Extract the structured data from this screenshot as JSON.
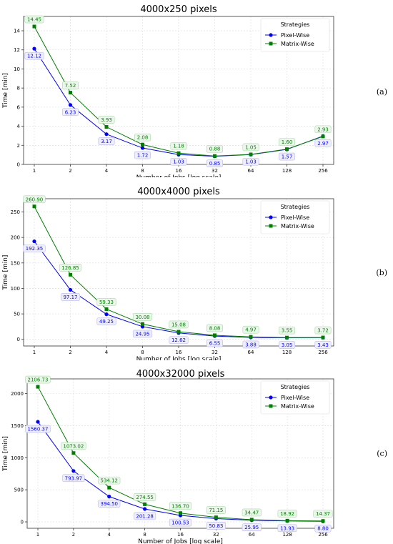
{
  "chart_data": [
    {
      "type": "line",
      "panel_label": "(a)",
      "title": "4000x250 pixels",
      "xlabel": "Number of Jobs [log scale]",
      "ylabel": "Time [min]",
      "x": [
        1,
        2,
        4,
        8,
        16,
        32,
        64,
        128,
        256
      ],
      "x_tick_labels": [
        "1",
        "2",
        "4",
        "8",
        "16",
        "32",
        "64",
        "128",
        "256"
      ],
      "x_scale": "log2",
      "ylim": [
        0,
        15.5
      ],
      "y_ticks": [
        0,
        2,
        4,
        6,
        8,
        10,
        12,
        14
      ],
      "grid": true,
      "legend": {
        "title": "Strategies",
        "position": "top-right"
      },
      "series": [
        {
          "name": "Pixel-Wise",
          "color": "#0000ff",
          "marker": "circle",
          "values": [
            12.12,
            6.23,
            3.17,
            1.72,
            1.03,
            0.85,
            1.03,
            1.57,
            2.97
          ],
          "labels": [
            "12.12",
            "6.23",
            "3.17",
            "1.72",
            "1.03",
            "0.85",
            "1.03",
            "1.57",
            "2.97"
          ]
        },
        {
          "name": "Matrix-Wise",
          "color": "#008000",
          "marker": "square",
          "values": [
            14.45,
            7.52,
            3.93,
            2.08,
            1.18,
            0.88,
            1.05,
            1.6,
            2.93
          ],
          "labels": [
            "14.45",
            "7.52",
            "3.93",
            "2.08",
            "1.18",
            "0.88",
            "1.05",
            "1.60",
            "2.93"
          ]
        }
      ]
    },
    {
      "type": "line",
      "panel_label": "(b)",
      "title": "4000x4000 pixels",
      "xlabel": "Number of Jobs [log scale]",
      "ylabel": "Time [min]",
      "x": [
        1,
        2,
        4,
        8,
        16,
        32,
        64,
        128,
        256
      ],
      "x_tick_labels": [
        "1",
        "2",
        "4",
        "8",
        "16",
        "32",
        "64",
        "128",
        "256"
      ],
      "x_scale": "log2",
      "ylim": [
        -13,
        276
      ],
      "y_ticks": [
        0,
        50,
        100,
        150,
        200,
        250
      ],
      "grid": true,
      "legend": {
        "title": "Strategies",
        "position": "top-right"
      },
      "series": [
        {
          "name": "Pixel-Wise",
          "color": "#0000ff",
          "marker": "circle",
          "values": [
            192.35,
            97.17,
            49.25,
            24.95,
            12.62,
            6.55,
            3.88,
            3.05,
            3.43
          ],
          "labels": [
            "192.35",
            "97.17",
            "49.25",
            "24.95",
            "12.62",
            "6.55",
            "3.88",
            "3.05",
            "3.43"
          ]
        },
        {
          "name": "Matrix-Wise",
          "color": "#008000",
          "marker": "square",
          "values": [
            260.9,
            126.85,
            59.33,
            30.08,
            15.08,
            8.08,
            4.97,
            3.55,
            3.72
          ],
          "labels": [
            "260.90",
            "126.85",
            "59.33",
            "30.08",
            "15.08",
            "8.08",
            "4.97",
            "3.55",
            "3.72"
          ]
        }
      ]
    },
    {
      "type": "line",
      "panel_label": "(c)",
      "title": "4000x32000 pixels",
      "xlabel": "Number of Jobs [log scale]",
      "ylabel": "Time [min]",
      "x": [
        1,
        2,
        4,
        8,
        16,
        32,
        64,
        128,
        256
      ],
      "x_tick_labels": [
        "1",
        "2",
        "4",
        "8",
        "16",
        "32",
        "64",
        "128",
        "256"
      ],
      "x_scale": "log2",
      "ylim": [
        -100,
        2230
      ],
      "y_ticks": [
        0,
        500,
        1000,
        1500,
        2000
      ],
      "grid": true,
      "legend": {
        "title": "Strategies",
        "position": "top-right"
      },
      "series": [
        {
          "name": "Pixel-Wise",
          "color": "#0000ff",
          "marker": "circle",
          "values": [
            1560.37,
            793.97,
            394.5,
            201.28,
            100.53,
            50.83,
            25.95,
            13.93,
            8.8
          ],
          "labels": [
            "1560.37",
            "793.97",
            "394.50",
            "201.28",
            "100.53",
            "50.83",
            "25.95",
            "13.93",
            "8.80"
          ]
        },
        {
          "name": "Matrix-Wise",
          "color": "#008000",
          "marker": "square",
          "values": [
            2106.73,
            1073.02,
            534.12,
            274.55,
            136.7,
            71.15,
            34.47,
            18.92,
            14.37
          ],
          "labels": [
            "2106.73",
            "1073.02",
            "534.12",
            "274.55",
            "136.70",
            "71.15",
            "34.47",
            "18.92",
            "14.37"
          ]
        }
      ]
    }
  ]
}
